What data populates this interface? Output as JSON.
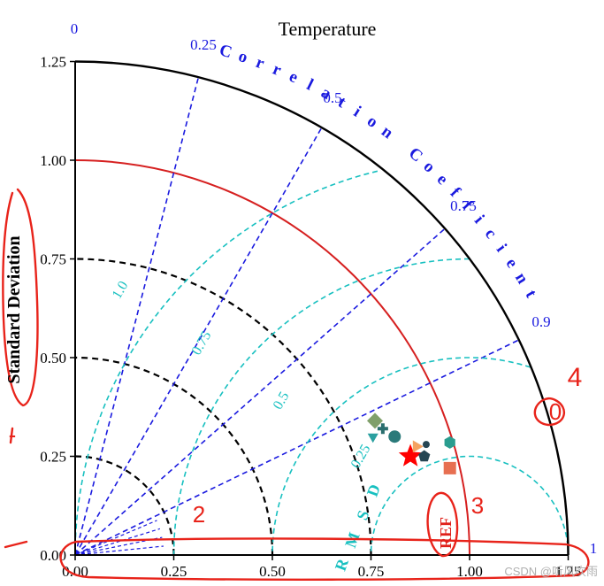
{
  "chart_data": {
    "type": "scatter",
    "subtype": "taylor-diagram",
    "title": "Temperature",
    "ylabel": "Standard Deviation",
    "corr_label": "Correlation Coefficient",
    "rmsd_label": "R M S D",
    "ref_label": "REF",
    "std_ticks": [
      "0.00",
      "0.25",
      "0.50",
      "0.75",
      "1.00",
      "1.25"
    ],
    "std_tick_values": [
      0,
      0.25,
      0.5,
      0.75,
      1.0,
      1.25
    ],
    "std_max": 1.25,
    "corr_ticks": [
      {
        "value": 0,
        "label": "0"
      },
      {
        "value": 0.25,
        "label": "0.25"
      },
      {
        "value": 0.5,
        "label": "0.5"
      },
      {
        "value": 0.75,
        "label": "0.75"
      },
      {
        "value": 0.9,
        "label": "0.9"
      },
      {
        "value": 1,
        "label": "1"
      }
    ],
    "rmsd_contours": [
      {
        "value": 0.25,
        "label": "0.25"
      },
      {
        "value": 0.5,
        "label": "0.5"
      },
      {
        "value": 0.75,
        "label": "0.75"
      },
      {
        "value": 1.0,
        "label": "1.0"
      }
    ],
    "ref_std": 1.0,
    "std_grid": [
      0.25,
      0.5,
      0.75
    ],
    "reference_point": {
      "x": 0.85,
      "y": 0.25
    },
    "points": [
      {
        "marker": "diamond",
        "color": "#7f9f6a",
        "x": 0.76,
        "y": 0.34
      },
      {
        "marker": "plus",
        "color": "#2a6e6e",
        "x": 0.78,
        "y": 0.32
      },
      {
        "marker": "triangle-down",
        "color": "#2aa0a0",
        "x": 0.755,
        "y": 0.3
      },
      {
        "marker": "circle",
        "color": "#2a7a7a",
        "x": 0.81,
        "y": 0.3
      },
      {
        "marker": "triangle-right",
        "color": "#f4a261",
        "x": 0.865,
        "y": 0.275
      },
      {
        "marker": "circle-small",
        "color": "#264653",
        "x": 0.89,
        "y": 0.28
      },
      {
        "marker": "hexagon",
        "color": "#2a9d8f",
        "x": 0.95,
        "y": 0.285
      },
      {
        "marker": "pentagon",
        "color": "#264653",
        "x": 0.885,
        "y": 0.25
      },
      {
        "marker": "square",
        "color": "#e76f51",
        "x": 0.95,
        "y": 0.22
      }
    ],
    "annotations": [
      "4",
      "0",
      "2",
      "3",
      "-"
    ],
    "watermark": "CSDN @听风吹雨"
  }
}
